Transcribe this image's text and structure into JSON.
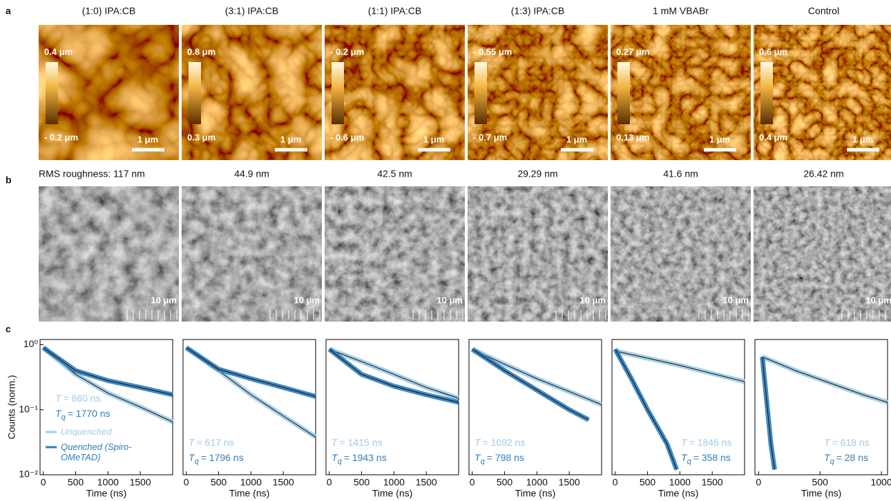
{
  "panel_labels": [
    "a",
    "b",
    "c"
  ],
  "afm": [
    {
      "title": "(1:0) IPA:CB",
      "bar_top": "0.4 μm",
      "bar_bottom": "- 0.2 μm",
      "scale": "1 μm"
    },
    {
      "title": "(3:1) IPA:CB",
      "bar_top": "0.8 μm",
      "bar_bottom": "0.3 μm",
      "scale": "1 μm"
    },
    {
      "title": "(1:1) IPA:CB",
      "bar_top": "- 0.2 μm",
      "bar_bottom": "- 0.6 μm",
      "scale": "1 μm"
    },
    {
      "title": "(1:3) IPA:CB",
      "bar_top": "- 0.55 μm",
      "bar_bottom": "- 0.7 μm",
      "scale": "1 μm"
    },
    {
      "title": "1 mM VBABr",
      "bar_top": "0.27 μm",
      "bar_bottom": "0.13 μm",
      "scale": "1 μm"
    },
    {
      "title": "Control",
      "bar_top": "0.6 μm",
      "bar_bottom": "0.4 μm",
      "scale": "1 μm"
    }
  ],
  "sem": [
    {
      "roughness": "RMS roughness: 117 nm",
      "scale": "10 μm"
    },
    {
      "roughness": "44.9 nm",
      "scale": "10 μm"
    },
    {
      "roughness": "42.5 nm",
      "scale": "10 μm"
    },
    {
      "roughness": "29.29 nm",
      "scale": "10 μm"
    },
    {
      "roughness": "41.6 nm",
      "scale": "10 μm"
    },
    {
      "roughness": "26.42 nm",
      "scale": "10 μm"
    }
  ],
  "chart_data": [
    {
      "type": "line",
      "y_label": "Counts (norm.)",
      "x_label": "Time (ns)",
      "log_y": true,
      "legend": true,
      "xlim": [
        -50,
        2000
      ],
      "xticks": [
        0,
        500,
        1000,
        1500
      ],
      "ylim": [
        0.01,
        1.2
      ],
      "yticks": [
        {
          "value": 1,
          "label": "10⁰"
        },
        {
          "value": 0.1,
          "label": "10⁻¹"
        },
        {
          "value": 0.01,
          "label": "10⁻²"
        }
      ],
      "series": [
        {
          "name": "Unquenched",
          "color": "#9fcbe6",
          "x": [
            0,
            500,
            1000,
            1500,
            2000
          ],
          "values": [
            0.9,
            0.35,
            0.18,
            0.11,
            0.065
          ]
        },
        {
          "name": "Quenched (Spiro-OMeTAD)",
          "color": "#2d7dbd",
          "x": [
            0,
            500,
            1000,
            1500,
            2000
          ],
          "values": [
            0.9,
            0.4,
            0.28,
            0.22,
            0.17
          ]
        }
      ],
      "annotations": [
        {
          "symbol": "T",
          "sub": "",
          "text": "= 860 ns",
          "color": "#9fcbe6"
        },
        {
          "symbol": "T",
          "sub": "q",
          "text": "= 1770 ns",
          "color": "#2d7dbd"
        }
      ]
    },
    {
      "type": "line",
      "x_label": "Time (ns)",
      "log_y": true,
      "xlim": [
        -50,
        2000
      ],
      "xticks": [
        0,
        500,
        1000,
        1500
      ],
      "ylim": [
        0.01,
        1.2
      ],
      "series": [
        {
          "color": "#9fcbe6",
          "x": [
            0,
            500,
            1000,
            1500,
            2000
          ],
          "values": [
            0.9,
            0.4,
            0.17,
            0.08,
            0.038
          ]
        },
        {
          "color": "#2d7dbd",
          "x": [
            0,
            500,
            1000,
            1500,
            2000
          ],
          "values": [
            0.9,
            0.42,
            0.3,
            0.22,
            0.16
          ]
        }
      ],
      "annotations": [
        {
          "symbol": "T",
          "sub": "",
          "text": "= 617 ns",
          "color": "#9fcbe6"
        },
        {
          "symbol": "T",
          "sub": "q",
          "text": "= 1796 ns",
          "color": "#2d7dbd"
        }
      ]
    },
    {
      "type": "line",
      "x_label": "Time (ns)",
      "log_y": true,
      "xlim": [
        -50,
        2000
      ],
      "xticks": [
        0,
        500,
        1000,
        1500
      ],
      "ylim": [
        0.01,
        1.2
      ],
      "series": [
        {
          "color": "#9fcbe6",
          "x": [
            0,
            500,
            1000,
            1500,
            2000
          ],
          "values": [
            0.85,
            0.55,
            0.35,
            0.22,
            0.15
          ]
        },
        {
          "color": "#2d7dbd",
          "x": [
            0,
            500,
            1000,
            1500,
            2000
          ],
          "values": [
            0.85,
            0.35,
            0.23,
            0.17,
            0.13
          ]
        }
      ],
      "annotations": [
        {
          "symbol": "T",
          "sub": "",
          "text": "= 1415 ns",
          "color": "#9fcbe6"
        },
        {
          "symbol": "T",
          "sub": "q",
          "text": "= 1943 ns",
          "color": "#2d7dbd"
        }
      ]
    },
    {
      "type": "line",
      "x_label": "Time (ns)",
      "log_y": true,
      "xlim": [
        -50,
        2000
      ],
      "xticks": [
        0,
        500,
        1000,
        1500
      ],
      "ylim": [
        0.01,
        1.2
      ],
      "series": [
        {
          "color": "#9fcbe6",
          "x": [
            0,
            500,
            1000,
            1500,
            2000
          ],
          "values": [
            0.85,
            0.5,
            0.3,
            0.19,
            0.12
          ]
        },
        {
          "color": "#2d7dbd",
          "x": [
            0,
            500,
            1000,
            1500,
            1800
          ],
          "values": [
            0.85,
            0.4,
            0.2,
            0.1,
            0.07
          ]
        }
      ],
      "annotations": [
        {
          "symbol": "T",
          "sub": "",
          "text": "= 1092 ns",
          "color": "#9fcbe6"
        },
        {
          "symbol": "T",
          "sub": "q",
          "text": "= 798 ns",
          "color": "#2d7dbd"
        }
      ]
    },
    {
      "type": "line",
      "x_label": "Time (ns)",
      "log_y": true,
      "xlim": [
        -50,
        2000
      ],
      "xticks": [
        0,
        500,
        1000,
        1500
      ],
      "ylim": [
        0.01,
        1.2
      ],
      "series": [
        {
          "color": "#9fcbe6",
          "x": [
            0,
            500,
            1000,
            1500,
            2000
          ],
          "values": [
            0.8,
            0.62,
            0.48,
            0.36,
            0.27
          ]
        },
        {
          "color": "#2d7dbd",
          "x": [
            0,
            250,
            500,
            800,
            950
          ],
          "values": [
            0.85,
            0.3,
            0.1,
            0.03,
            0.012
          ]
        }
      ],
      "annotations": [
        {
          "symbol": "T",
          "sub": "",
          "text": "= 1846 ns",
          "color": "#9fcbe6"
        },
        {
          "symbol": "T",
          "sub": "q",
          "text": "= 358 ns",
          "color": "#2d7dbd"
        }
      ]
    },
    {
      "type": "line",
      "x_label": "Time (ns)",
      "log_y": true,
      "xlim": [
        -30,
        1050
      ],
      "xticks": [
        0,
        500,
        1000
      ],
      "ylim": [
        0.01,
        1.2
      ],
      "series": [
        {
          "color": "#9fcbe6",
          "x": [
            30,
            300,
            600,
            850,
            1050
          ],
          "values": [
            0.65,
            0.4,
            0.25,
            0.17,
            0.13
          ]
        },
        {
          "color": "#2d7dbd",
          "x": [
            30,
            100,
            130
          ],
          "values": [
            0.65,
            0.03,
            0.012
          ]
        }
      ],
      "annotations": [
        {
          "symbol": "T",
          "sub": "",
          "text": "= 618 ns",
          "color": "#9fcbe6"
        },
        {
          "symbol": "T",
          "sub": "q",
          "text": "= 28 ns",
          "color": "#2d7dbd"
        }
      ]
    }
  ]
}
